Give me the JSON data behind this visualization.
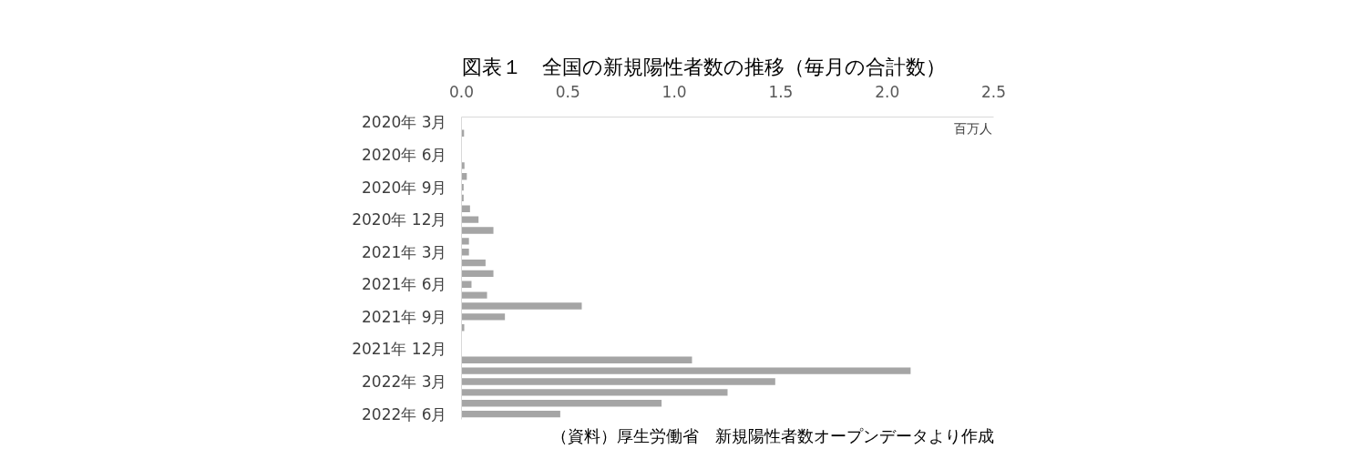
{
  "chart_data": {
    "type": "bar",
    "orientation": "horizontal",
    "title": "図表１　全国の新規陽性者数の推移（毎月の合計数）",
    "xlabel": "百万人",
    "categories": [
      "2020年 3月",
      null,
      null,
      "2020年 6月",
      null,
      null,
      "2020年 9月",
      null,
      null,
      "2020年 12月",
      null,
      null,
      "2021年 3月",
      null,
      null,
      "2021年 6月",
      null,
      null,
      "2021年 9月",
      null,
      null,
      "2021年 12月",
      null,
      null,
      "2022年 3月",
      null,
      null,
      "2022年 6月"
    ],
    "values": [
      null,
      0.012,
      null,
      null,
      0.014,
      0.025,
      0.01,
      0.01,
      0.04,
      0.08,
      0.15,
      0.035,
      0.035,
      0.113,
      0.15,
      0.047,
      0.12,
      0.565,
      0.204,
      0.013,
      null,
      null,
      1.083,
      2.11,
      1.474,
      1.25,
      0.94,
      0.464
    ],
    "color": "#a5a5a5",
    "xlim": [
      0,
      2.5
    ],
    "xticks": [
      {
        "value": 0,
        "label": "0.0"
      },
      {
        "value": 0.5,
        "label": "0.5"
      },
      {
        "value": 1,
        "label": "1.0"
      },
      {
        "value": 1.5,
        "label": "1.5"
      },
      {
        "value": 2,
        "label": "2.0"
      },
      {
        "value": 2.5,
        "label": "2.5"
      }
    ],
    "grid": false,
    "annotations": [
      "（資料）厚生労働省　新規陽性者数オープンデータより作成"
    ]
  }
}
